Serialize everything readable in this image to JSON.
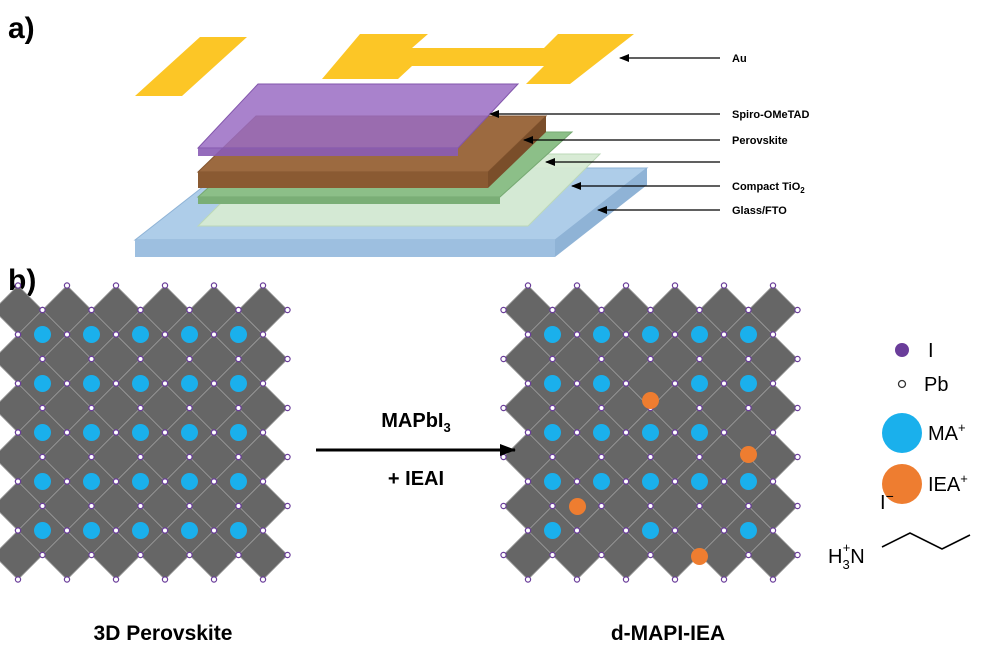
{
  "colors": {
    "gold": "#fcc626",
    "spiro": "#9a6cc3",
    "perovskite": "#9c6a40",
    "mesoporous": "#8cbf88",
    "compact_tio2": "#d6ead3",
    "glass_fto": "#aacae8",
    "octahedron": "#666666",
    "iodide": "#6a3d9a",
    "ma_cation": "#1ab0ec",
    "iea_cation": "#ee7d30"
  },
  "panel_a": {
    "label": "a)",
    "layers": [
      {
        "name": "au",
        "text": "Au"
      },
      {
        "name": "spiro",
        "text": "Spiro-OMeTAD"
      },
      {
        "name": "perovskite",
        "text": "Perovskite"
      },
      {
        "name": "mesoporous",
        "text": ""
      },
      {
        "name": "compact-tio2",
        "text": "Compact TiO",
        "sub": "2"
      },
      {
        "name": "glass-fto",
        "text": "Glass/FTO"
      }
    ]
  },
  "panel_b": {
    "label": "b)",
    "left_caption": "3D Perovskite",
    "right_caption": "d-MAPI-IEA",
    "arrow_label_top": "MAPbI",
    "arrow_label_top_sub": "3",
    "arrow_label_bottom": "+ IEAI",
    "lattice_size": "5x5",
    "iea_sites_replaced": 4
  },
  "legend": {
    "iodide": "I",
    "lead": "Pb",
    "ma": "MA",
    "ma_charge": "+",
    "iea": "IEA",
    "iea_charge": "+"
  },
  "structure": {
    "counter_ion": "I",
    "counter_ion_charge": "−",
    "amine_prefix": "H",
    "amine_sub": "3",
    "amine_sup": "+",
    "amine_n": "N"
  }
}
